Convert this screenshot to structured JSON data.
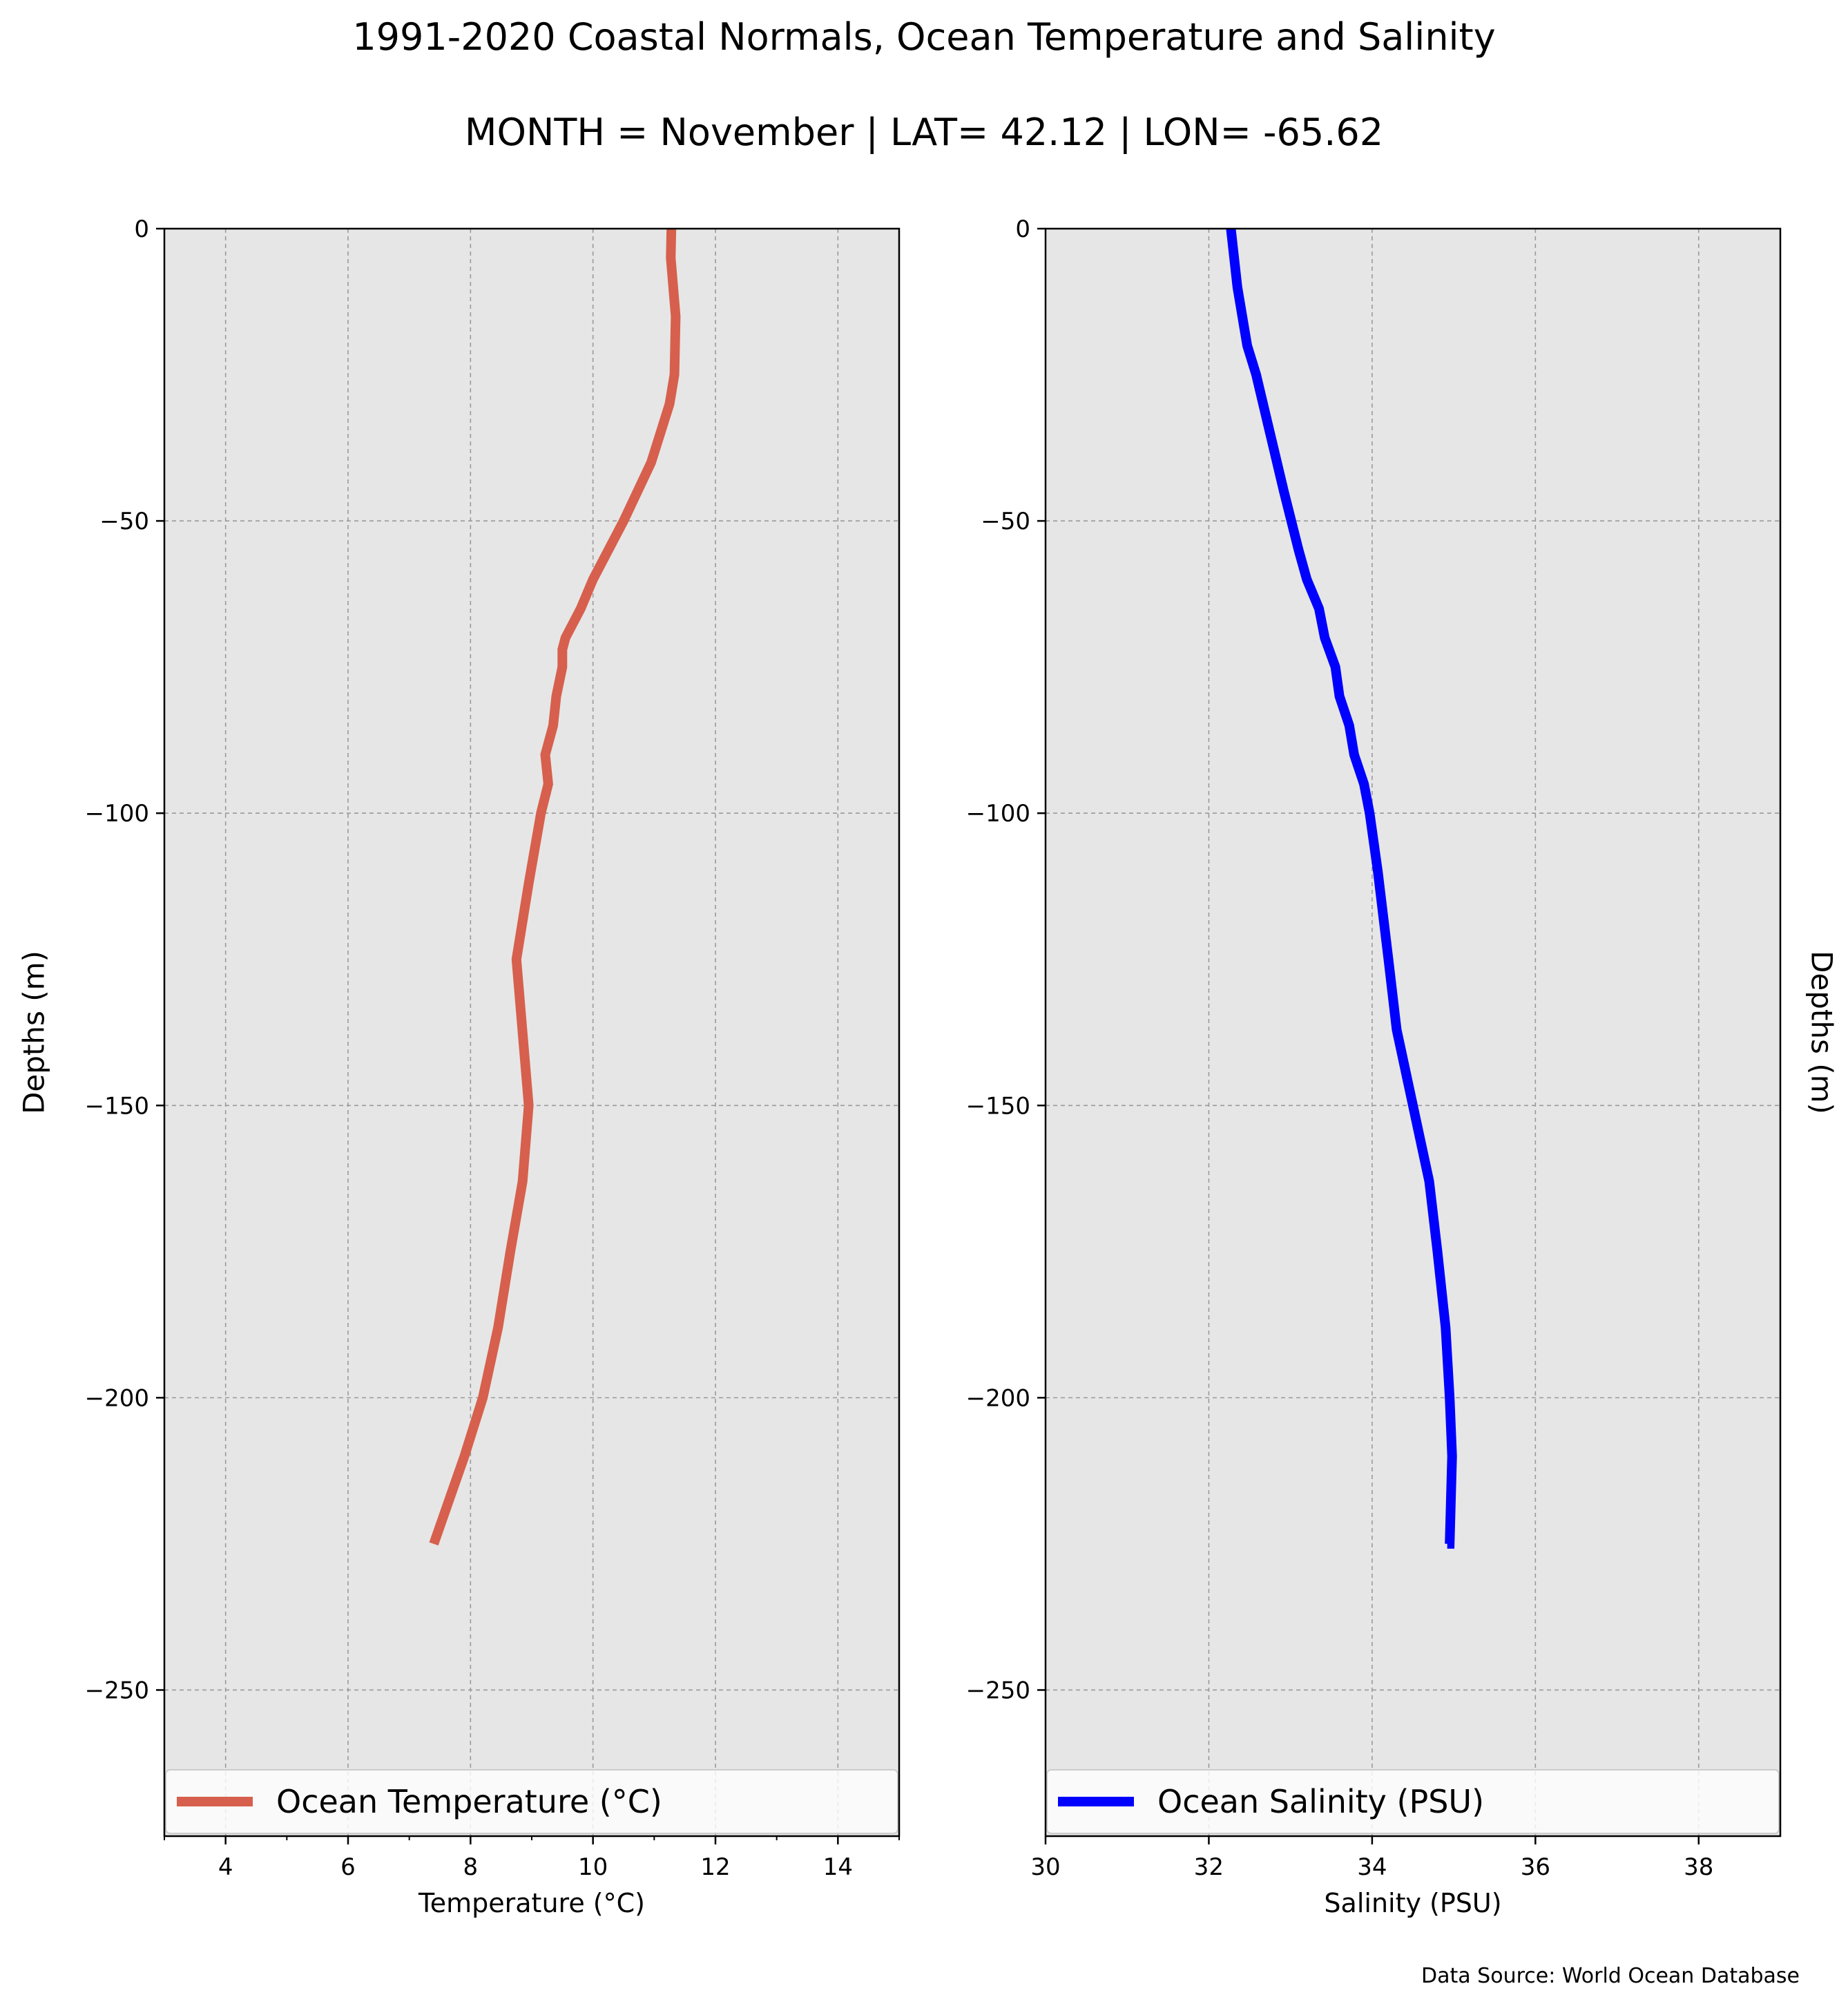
{
  "figure": {
    "title_line1": "1991-2020 Coastal Normals, Ocean Temperature and Salinity",
    "title_line2": "MONTH = November | LAT= 42.12 | LON= -65.62",
    "source_note": "Data Source: World Ocean Database"
  },
  "chart_data": [
    {
      "type": "line",
      "xlabel": "Temperature ($^\\circ$C)",
      "xlabel_display": "Temperature (°C)",
      "ylabel": "Depths (m)",
      "xlim": [
        3,
        15
      ],
      "ylim": [
        -275,
        0
      ],
      "x_ticks": [
        4,
        6,
        8,
        10,
        12,
        14
      ],
      "x_tick_labels": [
        "4",
        "6",
        "8",
        "10",
        "12",
        "14"
      ],
      "y_ticks": [
        0,
        -50,
        -100,
        -150,
        -200,
        -250
      ],
      "y_tick_labels": [
        "0",
        "−50",
        "−100",
        "−150",
        "−200",
        "−250"
      ],
      "grid": true,
      "legend_position": "lower-center",
      "color": "#d6604d",
      "series": [
        {
          "name": "Ocean Temperature ($^\\circ$C)",
          "display_name": "Ocean Temperature (°C)",
          "x": [
            11.28,
            11.27,
            11.35,
            11.33,
            11.25,
            11.1,
            10.95,
            10.5,
            10.0,
            9.8,
            9.55,
            9.5,
            9.5,
            9.4,
            9.35,
            9.22,
            9.27,
            9.15,
            8.95,
            8.75,
            8.95,
            8.85,
            8.65,
            8.45,
            8.2,
            7.9,
            7.4
          ],
          "y": [
            0,
            -5,
            -15,
            -25,
            -30,
            -35,
            -40,
            -50,
            -60,
            -65,
            -70,
            -72,
            -75,
            -80,
            -85,
            -90,
            -95,
            -100,
            -112,
            -125,
            -150,
            -163,
            -175,
            -188,
            -200,
            -210,
            -225
          ]
        }
      ]
    },
    {
      "type": "line",
      "xlabel": "Salinity (PSU)",
      "ylabel": "Depths (m)",
      "xlim": [
        30,
        39
      ],
      "ylim": [
        -275,
        0
      ],
      "x_ticks": [
        30,
        32,
        34,
        36,
        38
      ],
      "x_tick_labels": [
        "30",
        "32",
        "34",
        "36",
        "38"
      ],
      "y_ticks": [
        0,
        -50,
        -100,
        -150,
        -200,
        -250
      ],
      "y_tick_labels": [
        "0",
        "−50",
        "−100",
        "−150",
        "−200",
        "−250"
      ],
      "grid": true,
      "legend_position": "lower-center",
      "color": "#0000ff",
      "series": [
        {
          "name": "Ocean Salinity (PSU)",
          "x": [
            32.27,
            32.35,
            32.47,
            32.58,
            32.75,
            32.92,
            33.1,
            33.2,
            33.35,
            33.42,
            33.55,
            33.6,
            33.72,
            33.78,
            33.9,
            33.97,
            34.07,
            34.2,
            34.3,
            34.5,
            34.7,
            34.8,
            34.9,
            34.95,
            34.98,
            34.95,
            34.92
          ],
          "y": [
            0,
            -10,
            -20,
            -25,
            -35,
            -45,
            -55,
            -60,
            -65,
            -70,
            -75,
            -80,
            -85,
            -90,
            -95,
            -100,
            -110,
            -125,
            -137,
            -150,
            -163,
            -175,
            -188,
            -200,
            -210,
            -225,
            -225
          ]
        }
      ]
    }
  ]
}
